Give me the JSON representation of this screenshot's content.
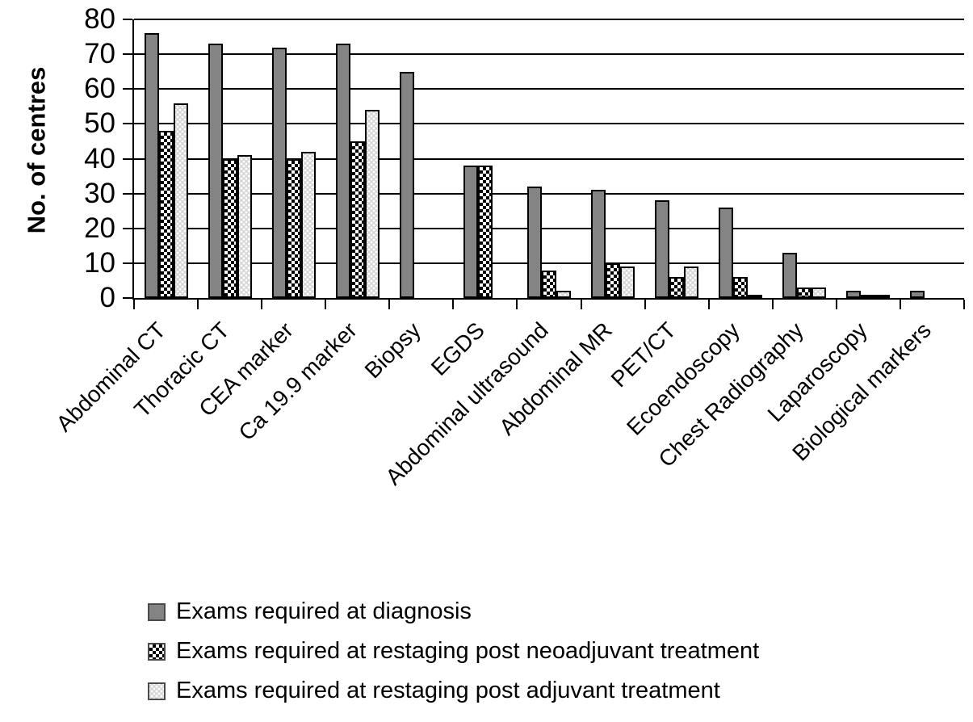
{
  "chart_data": {
    "type": "bar",
    "title": "",
    "xlabel": "",
    "ylabel": "No. of centres",
    "ylim": [
      0,
      80
    ],
    "yticks": [
      0,
      10,
      20,
      30,
      40,
      50,
      60,
      70,
      80
    ],
    "grid": "horizontal",
    "legend_position": "bottom-left",
    "categories": [
      "Abdominal CT",
      "Thoracic CT",
      "CEA marker",
      "Ca 19.9 marker",
      "Biopsy",
      "EGDS",
      "Abdominal ultrasound",
      "Abdominal MR",
      "PET/CT",
      "Ecoendoscopy",
      "Chest Radiography",
      "Laparoscopy",
      "Biological markers"
    ],
    "series": [
      {
        "name": "Exams required at diagnosis",
        "pattern": "solid-gray",
        "color": "#848484",
        "values": [
          76,
          73,
          72,
          73,
          65,
          38,
          32,
          31,
          28,
          26,
          13,
          2,
          2
        ]
      },
      {
        "name": "Exams required at restaging post neoadjuvant treatment",
        "pattern": "black-white-checkerboard",
        "color": "#000000",
        "values": [
          48,
          40,
          40,
          45,
          0,
          38,
          8,
          10,
          6,
          6,
          3,
          1,
          0
        ]
      },
      {
        "name": "Exams required at restaging post adjuvant treatment",
        "pattern": "dotted-light-gray",
        "color": "#d4d4d4",
        "values": [
          56,
          41,
          42,
          54,
          0,
          0,
          2,
          9,
          9,
          1,
          3,
          1,
          0
        ]
      }
    ]
  }
}
